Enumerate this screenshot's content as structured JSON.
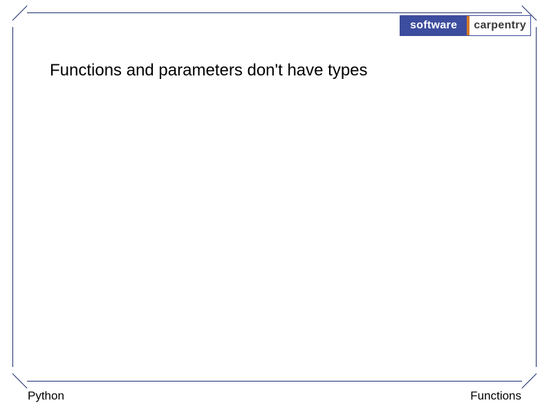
{
  "logo": {
    "left_text": "software",
    "right_text": "carpentry",
    "left_bg": "#3a4a9c",
    "left_fg": "#ffffff",
    "right_bg": "#ffffff",
    "right_fg": "#3a3a3a",
    "divider_color": "#d47a2a"
  },
  "heading": "Functions and parameters don't have types",
  "footer": {
    "left": "Python",
    "right": "Functions"
  },
  "colors": {
    "border": "#1a2a6c",
    "background": "#ffffff",
    "text": "#000000"
  }
}
